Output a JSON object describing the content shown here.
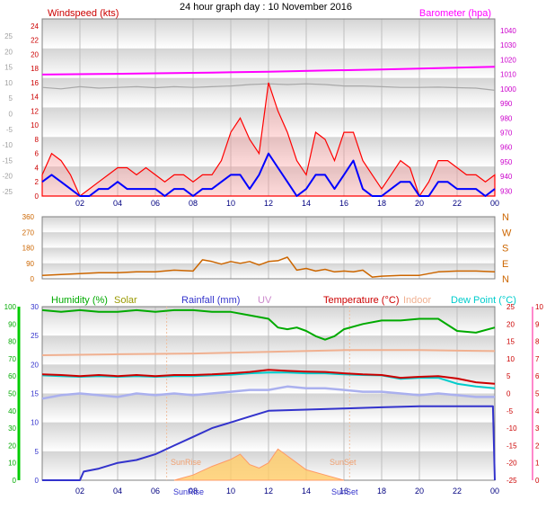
{
  "page": {
    "title": "24 hour graph day : 10 November 2016"
  },
  "x_ticks": [
    "02",
    "04",
    "06",
    "08",
    "10",
    "12",
    "14",
    "16",
    "18",
    "20",
    "22",
    "00"
  ],
  "colors": {
    "wind": "#ff0000",
    "gust_gray": "#a8a8a8",
    "wind_avg": "#0000ff",
    "baro": "#ff00ff",
    "dir": "#cc6600",
    "humidity": "#00aa00",
    "solar": "#999900",
    "rain": "#3333cc",
    "uv": "#cc88cc",
    "temp": "#cc0000",
    "indoor": "#f0b090",
    "dew": "#00cccc",
    "grid": "#bfbfbf",
    "band_dark": "#d4d4d4",
    "band_light": "#ffffff"
  },
  "chart_data": [
    {
      "type": "line",
      "panel": "wind",
      "labels": {
        "left": "Windspeed (kts)",
        "right": "Barometer (hpa)"
      },
      "axes": {
        "left_outer": {
          "ticks": [
            "25",
            "20",
            "15",
            "10",
            "5",
            "0",
            "-5",
            "-10",
            "-15",
            "-20",
            "-25"
          ]
        },
        "left_inner": {
          "ticks": [
            "24",
            "22",
            "20",
            "18",
            "16",
            "14",
            "12",
            "10",
            "8",
            "6",
            "4",
            "2",
            "0"
          ],
          "ylim": [
            0,
            25
          ]
        },
        "right": {
          "ticks": [
            "1040",
            "1030",
            "1020",
            "1010",
            "1000",
            "990",
            "980",
            "970",
            "960",
            "950",
            "940",
            "930"
          ],
          "ylim": [
            926.5,
            1048
          ]
        }
      },
      "series": [
        {
          "key": "wind_gust",
          "x": [
            0,
            0.5,
            1,
            1.5,
            2,
            2.5,
            3,
            3.5,
            4,
            4.5,
            5,
            5.5,
            6,
            6.5,
            7,
            7.5,
            8,
            8.5,
            9,
            9.5,
            10,
            10.5,
            11,
            11.5,
            12,
            12.5,
            13,
            13.5,
            14,
            14.5,
            15,
            15.5,
            16,
            16.5,
            17,
            17.5,
            18,
            18.5,
            19,
            19.5,
            20,
            20.5,
            21,
            21.5,
            22,
            22.5,
            23,
            23.5,
            24
          ],
          "values": [
            3,
            6,
            5,
            3,
            0,
            1,
            2,
            3,
            4,
            4,
            3,
            4,
            3,
            2,
            3,
            3,
            2,
            3,
            3,
            5,
            9,
            11,
            8,
            6,
            16,
            12,
            9,
            5,
            3,
            9,
            8,
            5,
            9,
            9,
            5,
            3,
            1,
            3,
            5,
            4,
            0,
            2,
            5,
            5,
            4,
            3,
            3,
            2,
            3
          ]
        },
        {
          "key": "wind_avg",
          "x": [
            0,
            0.5,
            1,
            1.5,
            2,
            2.5,
            3,
            3.5,
            4,
            4.5,
            5,
            5.5,
            6,
            6.5,
            7,
            7.5,
            8,
            8.5,
            9,
            9.5,
            10,
            10.5,
            11,
            11.5,
            12,
            12.5,
            13,
            13.5,
            14,
            14.5,
            15,
            15.5,
            16,
            16.5,
            17,
            17.5,
            18,
            18.5,
            19,
            19.5,
            20,
            20.5,
            21,
            21.5,
            22,
            22.5,
            23,
            23.5,
            24
          ],
          "values": [
            2,
            3,
            2,
            1,
            0,
            0,
            1,
            1,
            2,
            1,
            1,
            1,
            1,
            0,
            1,
            1,
            0,
            1,
            1,
            2,
            3,
            3,
            1,
            3,
            6,
            4,
            2,
            0,
            1,
            3,
            3,
            1,
            3,
            5,
            1,
            0,
            0,
            1,
            2,
            2,
            0,
            0,
            2,
            2,
            1,
            1,
            1,
            0,
            1
          ]
        },
        {
          "key": "barometer",
          "x": [
            0,
            3,
            6,
            9,
            12,
            15,
            18,
            21,
            24
          ],
          "values": [
            1009.8,
            1010.2,
            1010.7,
            1011.2,
            1011.8,
            1012.6,
            1013.3,
            1014.2,
            1015.2
          ]
        },
        {
          "key": "gust_gray",
          "x": [
            0,
            1,
            2,
            3,
            4,
            5,
            6,
            7,
            8,
            9,
            10,
            11,
            12,
            13,
            14,
            15,
            16,
            17,
            18,
            19,
            20,
            21,
            22,
            23,
            24
          ],
          "values": [
            1001,
            1000,
            1001.5,
            1000.5,
            1001,
            1001.5,
            1000.8,
            1001.5,
            1001,
            1001.5,
            1002,
            1003,
            1003.5,
            1003,
            1003.5,
            1003,
            1002,
            1002,
            1001.5,
            1001,
            1001,
            1001.2,
            1000.8,
            1000.5,
            999
          ]
        }
      ]
    },
    {
      "type": "line",
      "panel": "direction",
      "axes": {
        "left": {
          "ticks": [
            "360",
            "270",
            "180",
            "90",
            "0"
          ],
          "ylim": [
            0,
            360
          ]
        },
        "right": {
          "ticks": [
            "N",
            "W",
            "S",
            "E",
            "N"
          ]
        }
      },
      "series": [
        {
          "key": "wind_direction",
          "x": [
            0,
            1,
            2,
            3,
            4,
            5,
            6,
            7,
            8,
            8.5,
            9,
            9.5,
            10,
            10.5,
            11,
            11.5,
            12,
            12.5,
            13,
            13.5,
            14,
            14.5,
            15,
            15.5,
            16,
            16.5,
            17,
            17.5,
            18,
            19,
            20,
            21,
            22,
            23,
            24
          ],
          "values": [
            20,
            25,
            30,
            35,
            35,
            40,
            40,
            50,
            45,
            110,
            100,
            85,
            100,
            90,
            100,
            80,
            100,
            105,
            125,
            50,
            60,
            45,
            55,
            40,
            45,
            40,
            50,
            10,
            15,
            20,
            20,
            40,
            45,
            45,
            40
          ]
        }
      ]
    },
    {
      "type": "line",
      "panel": "climate",
      "labels": {
        "humidity": "Humidity (%)",
        "solar": "Solar",
        "rainfall": "Rainfall (mm)",
        "uv": "UV",
        "temperature": "Temperature (°C)",
        "indoor": "Indoor",
        "dewpoint": "Dew Point (°C)",
        "sunrise_top": "SunRise",
        "sunset_top": "SunSet",
        "sunrise_bottom": "SunRise",
        "sunset_bottom": "SunSet"
      },
      "axes": {
        "humidity": {
          "ticks": [
            "100",
            "90",
            "80",
            "70",
            "60",
            "50",
            "40",
            "30",
            "20",
            "10",
            "0"
          ],
          "ylim": [
            0,
            100
          ]
        },
        "rainfall": {
          "ticks": [
            "30",
            "25",
            "20",
            "15",
            "10",
            "5",
            "0"
          ],
          "ylim": [
            0,
            30
          ]
        },
        "temperature": {
          "ticks": [
            "25",
            "20",
            "15",
            "10",
            "5",
            "0",
            "-5",
            "-10",
            "-15",
            "-20",
            "-25"
          ],
          "ylim": [
            -25,
            25
          ]
        },
        "uv": {
          "ticks": [
            "10",
            "9",
            "8",
            "7",
            "6",
            "5",
            "4",
            "3",
            "2",
            "1",
            "0"
          ],
          "ylim": [
            0,
            10
          ]
        }
      },
      "sun_events": {
        "sunrise_hour": 6.6,
        "sunset_hour": 16.3
      },
      "series": [
        {
          "key": "humidity",
          "x": [
            0,
            1,
            2,
            3,
            4,
            5,
            6,
            7,
            8,
            9,
            10,
            11,
            12,
            12.5,
            13,
            13.5,
            14,
            14.5,
            15,
            15.5,
            16,
            17,
            18,
            19,
            20,
            21,
            22,
            23,
            24
          ],
          "values": [
            98,
            97,
            98,
            97,
            97,
            98,
            97,
            98,
            98,
            97,
            97,
            95,
            93,
            88,
            87,
            88,
            86,
            83,
            81,
            83,
            87,
            90,
            92,
            92,
            93,
            93,
            86,
            85,
            88
          ]
        },
        {
          "key": "temperature",
          "x": [
            0,
            1,
            2,
            3,
            4,
            5,
            6,
            7,
            8,
            9,
            10,
            11,
            12,
            13,
            14,
            15,
            16,
            17,
            18,
            19,
            20,
            21,
            22,
            23,
            24
          ],
          "values": [
            5.5,
            5.3,
            5.0,
            5.3,
            5.0,
            5.3,
            5.0,
            5.3,
            5.3,
            5.5,
            5.8,
            6.2,
            6.8,
            6.5,
            6.3,
            6.2,
            5.8,
            5.5,
            5.3,
            4.5,
            4.8,
            5.0,
            4.3,
            3.2,
            2.8
          ]
        },
        {
          "key": "dewpoint",
          "x": [
            0,
            1,
            2,
            3,
            4,
            5,
            6,
            7,
            8,
            9,
            10,
            11,
            12,
            13,
            14,
            15,
            16,
            17,
            18,
            19,
            20,
            21,
            22,
            23,
            24
          ],
          "values": [
            5.2,
            5.0,
            4.8,
            5.0,
            4.8,
            5.0,
            4.8,
            5.0,
            5.0,
            5.2,
            5.4,
            5.8,
            6.0,
            6.0,
            5.8,
            5.8,
            5.5,
            5.3,
            5.2,
            4.2,
            4.5,
            4.5,
            2.8,
            2.0,
            1.5
          ]
        },
        {
          "key": "humidity_noise",
          "x": [
            0,
            1,
            2,
            3,
            4,
            5,
            6,
            7,
            8,
            9,
            10,
            11,
            12,
            13,
            14,
            15,
            16,
            17,
            18,
            19,
            20,
            21,
            22,
            23,
            24
          ],
          "values": [
            47,
            49,
            50,
            49,
            48,
            50,
            49,
            50,
            49,
            50,
            51,
            52,
            52,
            54,
            53,
            53,
            52,
            51,
            51,
            50,
            49,
            50,
            49,
            48,
            48
          ]
        },
        {
          "key": "indoor",
          "x": [
            0,
            4,
            8,
            12,
            16,
            20,
            24
          ],
          "values": [
            11.0,
            11.3,
            11.5,
            12.0,
            12.5,
            12.5,
            12.2
          ]
        },
        {
          "key": "rainfall",
          "x": [
            0,
            2,
            2.2,
            3,
            4,
            5,
            6,
            7,
            8,
            9,
            10,
            11,
            12,
            14,
            16,
            18,
            20,
            22,
            23.9,
            24
          ],
          "values": [
            0,
            0,
            1.5,
            2,
            3,
            3.5,
            4.5,
            6,
            7.5,
            9,
            10,
            11,
            12,
            12.2,
            12.4,
            12.6,
            12.8,
            12.8,
            12.8,
            0
          ]
        },
        {
          "key": "solar",
          "x": [
            7,
            8,
            9,
            10,
            10.5,
            11,
            11.5,
            12,
            12.5,
            13,
            13.5,
            14,
            15,
            16
          ],
          "values": [
            0,
            3,
            8,
            12,
            15,
            9,
            7,
            10,
            18,
            14,
            10,
            6,
            3,
            0
          ]
        }
      ]
    }
  ]
}
